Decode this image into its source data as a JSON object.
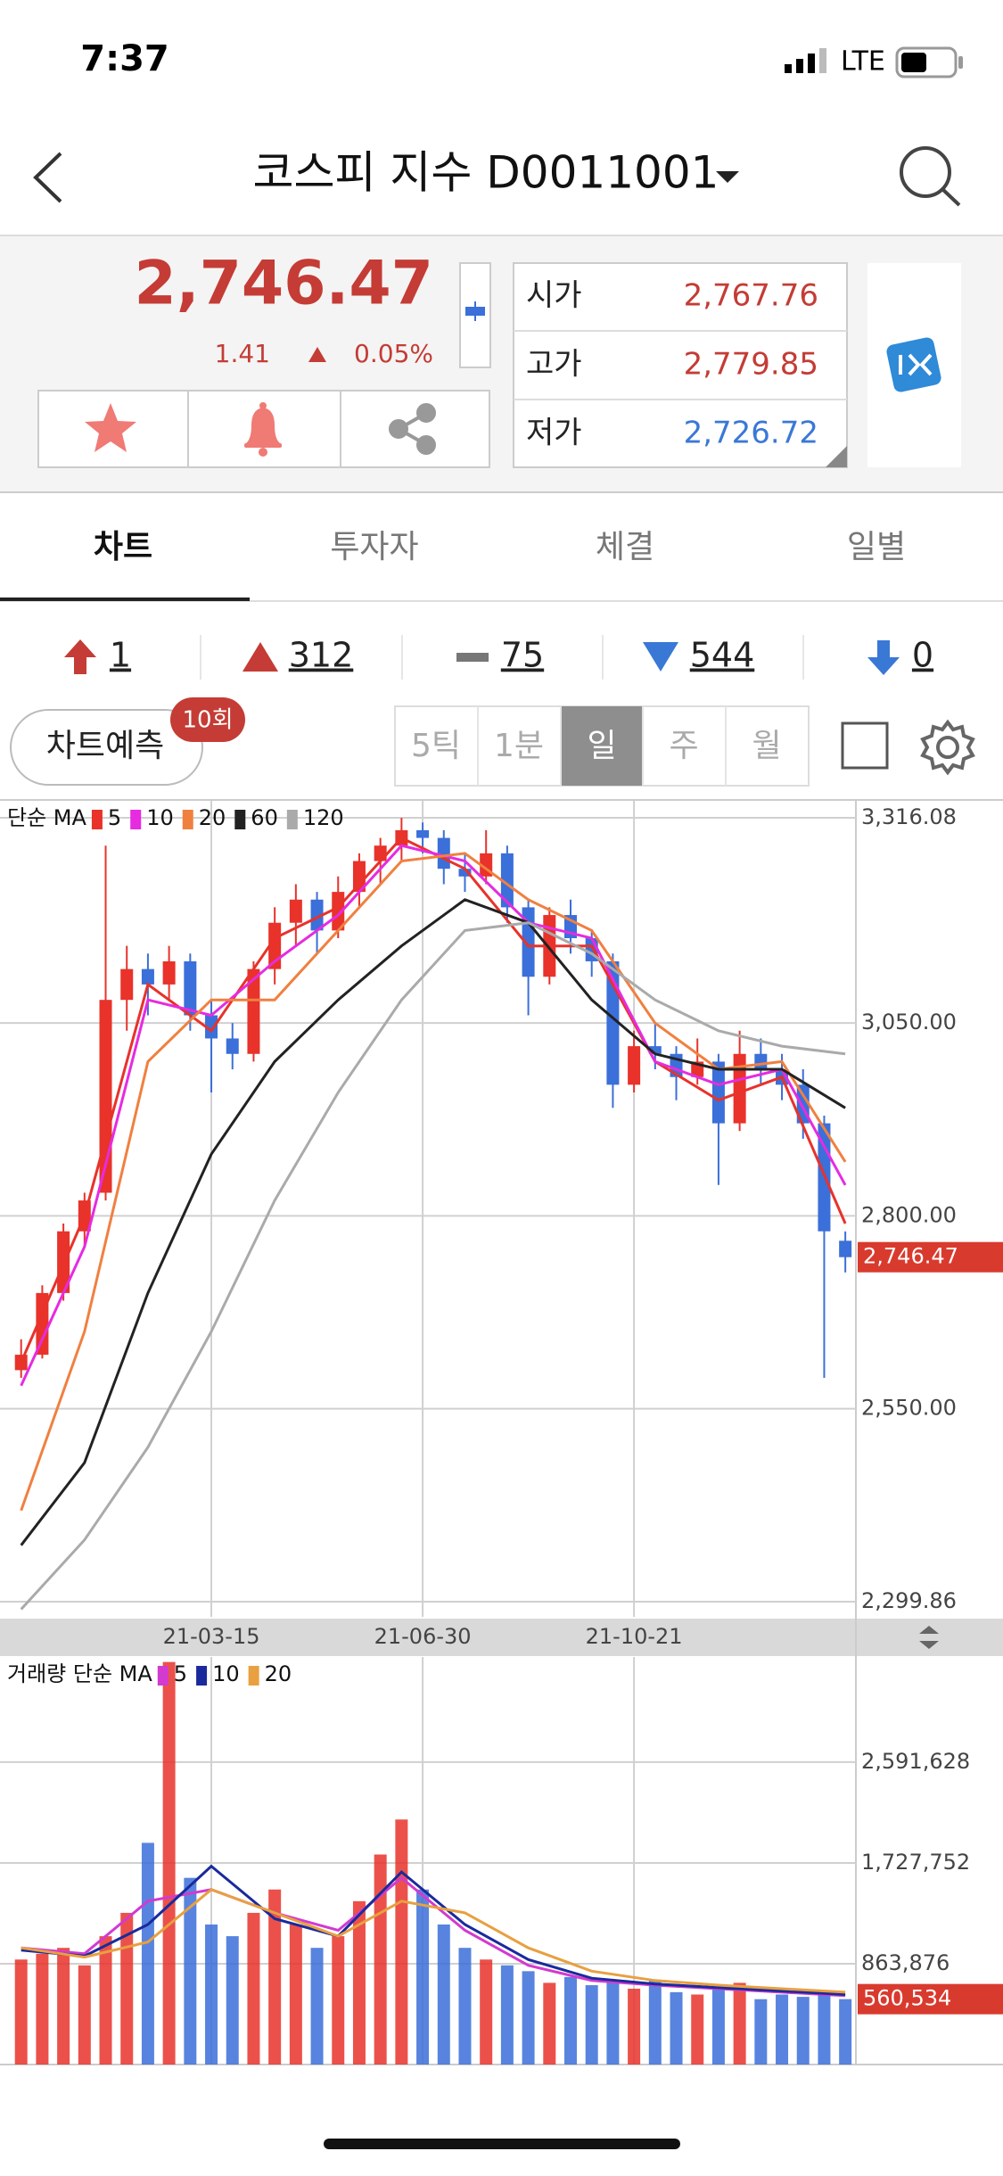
{
  "status_bar": {
    "time": "7:37",
    "network": "LTE"
  },
  "header": {
    "title": "코스피 지수 D0011001"
  },
  "quote": {
    "price": "2,746.47",
    "change": "1.41",
    "change_rate": "0.05%",
    "ohlc": [
      {
        "label": "시가",
        "value": "2,767.76"
      },
      {
        "label": "고가",
        "value": "2,779.85"
      },
      {
        "label": "저가",
        "value": "2,726.72"
      }
    ]
  },
  "tabs": [
    "차트",
    "투자자",
    "체결",
    "일별"
  ],
  "breadth": [
    1,
    312,
    75,
    544,
    0
  ],
  "predict": {
    "label": "차트예측",
    "badge": "10회"
  },
  "periods": [
    "5틱",
    "1분",
    "일",
    "주",
    "월"
  ],
  "chart_data": [
    {
      "type": "candlestick",
      "legend_title": "단순 MA",
      "up_color": "#e8322a",
      "down_color": "#3b6fd9",
      "xlim": [
        -1,
        39.5
      ],
      "xticks": [
        {
          "value": 9,
          "label": "21-03-15"
        },
        {
          "value": 19,
          "label": "21-06-30"
        },
        {
          "value": 29,
          "label": "21-10-21"
        }
      ],
      "ylim": [
        2299.86,
        3316.08
      ],
      "yticks": [
        {
          "value": 3316.08,
          "label": "3,316.08"
        },
        {
          "value": 3050,
          "label": "3,050.00"
        },
        {
          "value": 2800,
          "label": "2,800.00"
        },
        {
          "value": 2550,
          "label": "2,550.00"
        },
        {
          "value": 2299.86,
          "label": "2,299.86"
        }
      ],
      "grid": true,
      "last_label": {
        "value": 2746.47,
        "label": "2,746.47"
      },
      "candles": [
        [
          2600,
          2640,
          2590,
          2620
        ],
        [
          2620,
          2710,
          2615,
          2700
        ],
        [
          2700,
          2790,
          2690,
          2780
        ],
        [
          2780,
          2830,
          2760,
          2820
        ],
        [
          2830,
          3280,
          2820,
          3080
        ],
        [
          3080,
          3150,
          3040,
          3120
        ],
        [
          3120,
          3140,
          3060,
          3100
        ],
        [
          3100,
          3150,
          3080,
          3130
        ],
        [
          3130,
          3140,
          3040,
          3060
        ],
        [
          3060,
          3080,
          2960,
          3030
        ],
        [
          3030,
          3050,
          2990,
          3010
        ],
        [
          3010,
          3130,
          3000,
          3120
        ],
        [
          3120,
          3200,
          3100,
          3180
        ],
        [
          3180,
          3230,
          3150,
          3210
        ],
        [
          3210,
          3220,
          3140,
          3170
        ],
        [
          3170,
          3240,
          3160,
          3220
        ],
        [
          3220,
          3270,
          3200,
          3260
        ],
        [
          3260,
          3290,
          3230,
          3280
        ],
        [
          3280,
          3316,
          3260,
          3300
        ],
        [
          3300,
          3310,
          3270,
          3290
        ],
        [
          3290,
          3300,
          3230,
          3250
        ],
        [
          3250,
          3270,
          3220,
          3240
        ],
        [
          3240,
          3300,
          3230,
          3270
        ],
        [
          3270,
          3280,
          3180,
          3200
        ],
        [
          3200,
          3210,
          3060,
          3110
        ],
        [
          3110,
          3200,
          3100,
          3190
        ],
        [
          3190,
          3210,
          3140,
          3160
        ],
        [
          3160,
          3170,
          3110,
          3130
        ],
        [
          3130,
          3140,
          2940,
          2970
        ],
        [
          2970,
          3040,
          2960,
          3020
        ],
        [
          3020,
          3050,
          2990,
          3010
        ],
        [
          3010,
          3020,
          2950,
          2980
        ],
        [
          2980,
          3030,
          2970,
          3000
        ],
        [
          3000,
          3010,
          2840,
          2920
        ],
        [
          2920,
          3040,
          2910,
          3010
        ],
        [
          3010,
          3030,
          2970,
          2990
        ],
        [
          2990,
          3010,
          2950,
          2970
        ],
        [
          2970,
          2990,
          2900,
          2920
        ],
        [
          2920,
          2930,
          2590,
          2780
        ],
        [
          2767.76,
          2779.85,
          2726.72,
          2746.47
        ]
      ],
      "ma_x": [
        0,
        3,
        6,
        9,
        12,
        15,
        18,
        21,
        24,
        27,
        30,
        33,
        36,
        39
      ],
      "series": [
        {
          "name": "5",
          "color": "#e8322a",
          "values": [
            2610,
            2800,
            3100,
            3040,
            3160,
            3200,
            3290,
            3250,
            3150,
            3150,
            3000,
            2950,
            2980,
            2790
          ]
        },
        {
          "name": "10",
          "color": "#e62be0",
          "values": [
            2580,
            2760,
            3080,
            3060,
            3130,
            3190,
            3280,
            3260,
            3180,
            3160,
            3000,
            2970,
            2990,
            2840
          ]
        },
        {
          "name": "20",
          "color": "#f08040",
          "values": [
            2418,
            2650,
            3000,
            3080,
            3080,
            3170,
            3260,
            3270,
            3210,
            3170,
            3050,
            2990,
            3000,
            2870
          ]
        },
        {
          "name": "60",
          "color": "#222222",
          "values": [
            2373,
            2480,
            2700,
            2880,
            3000,
            3080,
            3150,
            3210,
            3180,
            3080,
            3010,
            2990,
            2990,
            2940
          ]
        },
        {
          "name": "120",
          "color": "#aaaaaa",
          "values": [
            2290,
            2380,
            2500,
            2650,
            2820,
            2960,
            3080,
            3170,
            3180,
            3140,
            3080,
            3040,
            3020,
            3010
          ]
        }
      ]
    },
    {
      "type": "bar",
      "legend_title": "거래량 단순 MA",
      "xlim": [
        -1,
        39.5
      ],
      "ylim": [
        0,
        3493000
      ],
      "yticks": [
        {
          "value": 2591628,
          "label": "2,591,628"
        },
        {
          "value": 1727752,
          "label": "1,727,752"
        },
        {
          "value": 863876,
          "label": "863,876"
        }
      ],
      "grid": true,
      "last_label": {
        "value": 560534,
        "label": "560,534"
      },
      "values": [
        900000,
        950000,
        1000000,
        850000,
        1100000,
        1300000,
        1900000,
        3450000,
        1600000,
        1200000,
        1100000,
        1300000,
        1500000,
        1200000,
        1000000,
        1100000,
        1400000,
        1800000,
        2100000,
        1500000,
        1200000,
        1000000,
        900000,
        850000,
        800000,
        700000,
        750000,
        680000,
        700000,
        650000,
        720000,
        620000,
        600000,
        650000,
        700000,
        560000,
        600000,
        580000,
        620000,
        560534
      ],
      "ma_x": [
        0,
        3,
        6,
        9,
        12,
        15,
        18,
        21,
        24,
        27,
        30,
        33,
        36,
        39
      ],
      "series": [
        {
          "name": "5",
          "color": "#d23ad0",
          "values": [
            1000000,
            950000,
            1400000,
            1500000,
            1300000,
            1150000,
            1600000,
            1150000,
            850000,
            720000,
            680000,
            650000,
            620000,
            590000
          ]
        },
        {
          "name": "10",
          "color": "#1a2a9c",
          "values": [
            980000,
            930000,
            1200000,
            1700000,
            1250000,
            1100000,
            1650000,
            1200000,
            900000,
            740000,
            690000,
            660000,
            630000,
            600000
          ]
        },
        {
          "name": "20",
          "color": "#e8a040",
          "values": [
            1000000,
            920000,
            1050000,
            1500000,
            1300000,
            1100000,
            1400000,
            1300000,
            1000000,
            800000,
            720000,
            680000,
            650000,
            620000
          ]
        }
      ]
    }
  ]
}
